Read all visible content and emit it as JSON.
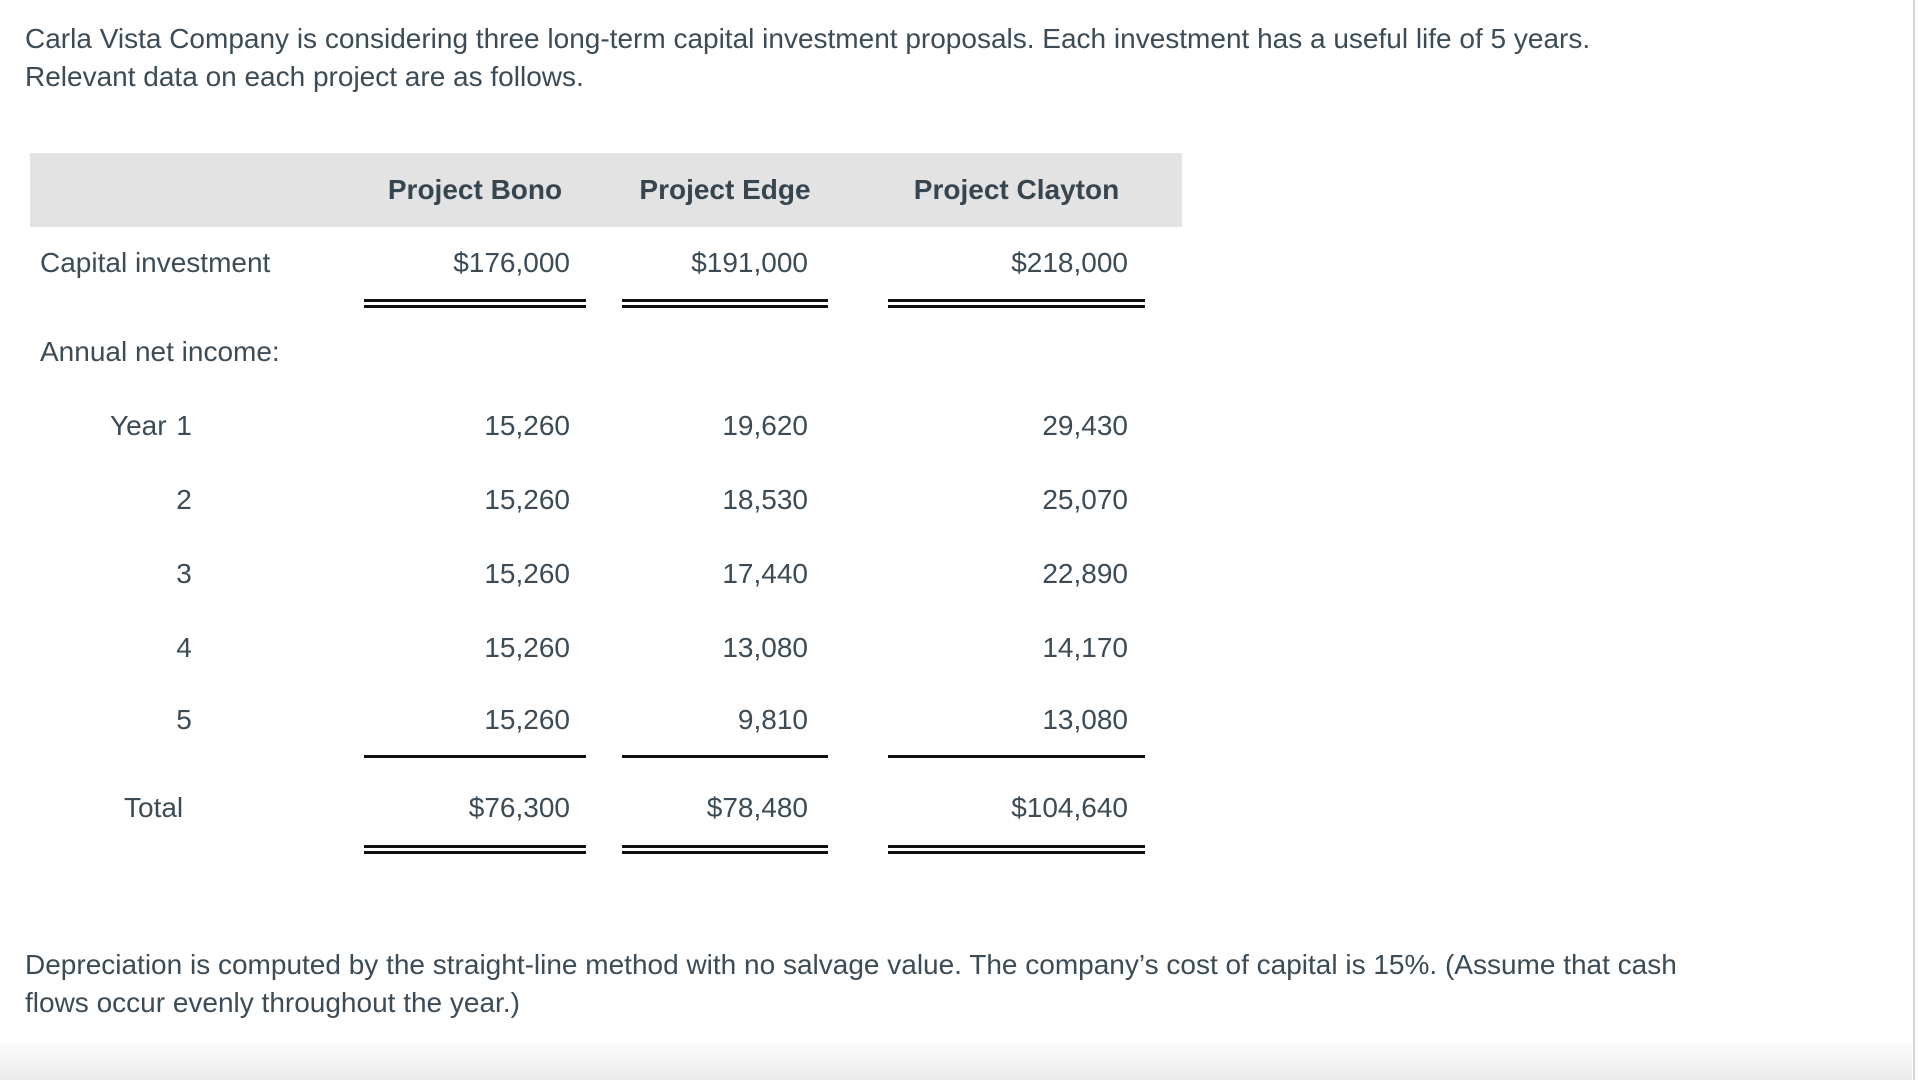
{
  "intro": {
    "lines": [
      "Carla Vista Company is considering three long-term capital investment proposals. Each investment has a useful life of 5 years.",
      "Relevant data on each project are as follows."
    ]
  },
  "table": {
    "header": [
      "Project Bono",
      "Project Edge",
      "Project Clayton"
    ],
    "rows": {
      "capital": {
        "label": "Capital investment",
        "values": [
          "$176,000",
          "$191,000",
          "$218,000"
        ]
      },
      "annual_label": "Annual net income:",
      "years": [
        {
          "prefix": "Year",
          "digit": "1",
          "values": [
            "15,260",
            "19,620",
            "29,430"
          ]
        },
        {
          "digit": "2",
          "values": [
            "15,260",
            "18,530",
            "25,070"
          ]
        },
        {
          "digit": "3",
          "values": [
            "15,260",
            "17,440",
            "22,890"
          ]
        },
        {
          "digit": "4",
          "values": [
            "15,260",
            "13,080",
            "14,170"
          ]
        },
        {
          "digit": "5",
          "values": [
            "15,260",
            "9,810",
            "13,080"
          ]
        }
      ],
      "total": {
        "label": "Total",
        "values": [
          "$76,300",
          "$78,480",
          "$104,640"
        ]
      }
    }
  },
  "note": {
    "lines": [
      "Depreciation is computed by the straight-line method with no salvage value. The company’s cost of capital is 15%. (Assume that cash",
      "flows occur evenly throughout the year.)"
    ]
  },
  "colors": {
    "text": "#3c4b55",
    "header_band": "#e3e3e4",
    "rule": "#101010"
  }
}
